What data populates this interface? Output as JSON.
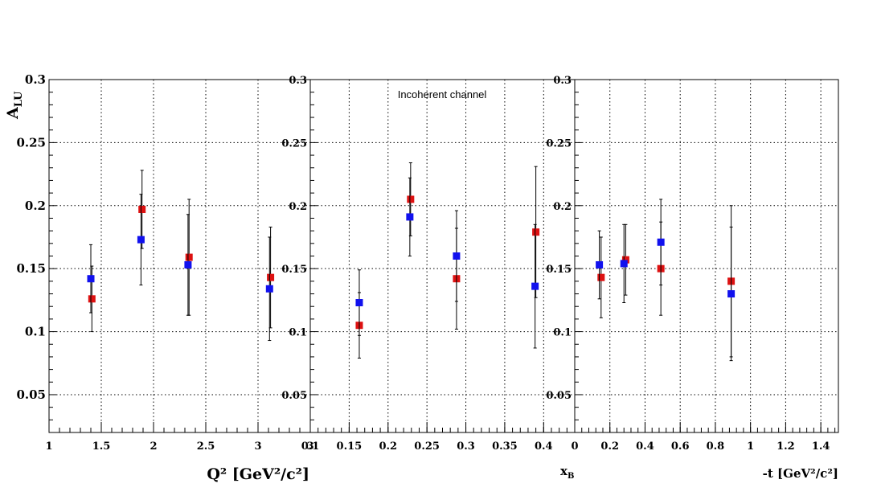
{
  "chart_data": [
    {
      "type": "scatter",
      "ylabel_main": "A",
      "ylabel_sub": "LU",
      "xlabel": "Q² [GeV²/c²]",
      "xlim": [
        1,
        3.5
      ],
      "ylim": [
        0.02,
        0.3
      ],
      "xticks": [
        "1",
        "1.5",
        "2",
        "2.5",
        "3",
        "3"
      ],
      "yticks": [
        "0.3",
        "0.25",
        "0.2",
        "0.15",
        "0.1",
        "0.05"
      ],
      "grid": true,
      "series": [
        {
          "color": "#dd1111",
          "x": [
            1.41,
            1.89,
            2.34,
            3.12
          ],
          "y": [
            0.126,
            0.197,
            0.159,
            0.143
          ],
          "err": [
            0.026,
            0.031,
            0.046,
            0.04
          ]
        },
        {
          "color": "#1111ee",
          "x": [
            1.4,
            1.88,
            2.33,
            3.11
          ],
          "y": [
            0.142,
            0.173,
            0.153,
            0.134
          ],
          "err": [
            0.027,
            0.036,
            0.04,
            0.041
          ]
        }
      ]
    },
    {
      "type": "scatter",
      "xlabel": "x",
      "xlabel_sub": "B",
      "annotation": "Incoherent channel",
      "xlim": [
        0.1,
        0.44
      ],
      "ylim": [
        0.02,
        0.3
      ],
      "xticks": [
        "0.1",
        "0.15",
        "0.2",
        "0.25",
        "0.3",
        "0.35",
        "0.4",
        "0"
      ],
      "yticks": [
        "0.3",
        "0.25",
        "0.2",
        "0.15",
        "0.1",
        "0.05"
      ],
      "grid": true,
      "series": [
        {
          "color": "#dd1111",
          "x": [
            0.163,
            0.229,
            0.288,
            0.39
          ],
          "y": [
            0.105,
            0.205,
            0.142,
            0.179
          ],
          "err": [
            0.026,
            0.029,
            0.04,
            0.052
          ]
        },
        {
          "color": "#1111ee",
          "x": [
            0.163,
            0.228,
            0.288,
            0.389
          ],
          "y": [
            0.123,
            0.191,
            0.16,
            0.136
          ],
          "err": [
            0.026,
            0.031,
            0.036,
            0.049
          ]
        }
      ]
    },
    {
      "type": "scatter",
      "xlabel": "-t [GeV²/c²]",
      "xlim": [
        0,
        1.5
      ],
      "ylim": [
        0.02,
        0.3
      ],
      "xticks": [
        "0.2",
        "0.4",
        "0.6",
        "0.8",
        "1",
        "1.2",
        "1.4"
      ],
      "yticks": [
        "0.3",
        "0.25",
        "0.2",
        "0.15",
        "0.1",
        "0.05"
      ],
      "grid": true,
      "series": [
        {
          "color": "#dd1111",
          "x": [
            0.15,
            0.29,
            0.49,
            0.89
          ],
          "y": [
            0.143,
            0.157,
            0.15,
            0.14
          ],
          "err": [
            0.032,
            0.028,
            0.037,
            0.06
          ]
        },
        {
          "color": "#1111ee",
          "x": [
            0.14,
            0.28,
            0.49,
            0.89
          ],
          "y": [
            0.153,
            0.154,
            0.171,
            0.13
          ],
          "err": [
            0.027,
            0.031,
            0.034,
            0.053
          ]
        }
      ]
    }
  ]
}
